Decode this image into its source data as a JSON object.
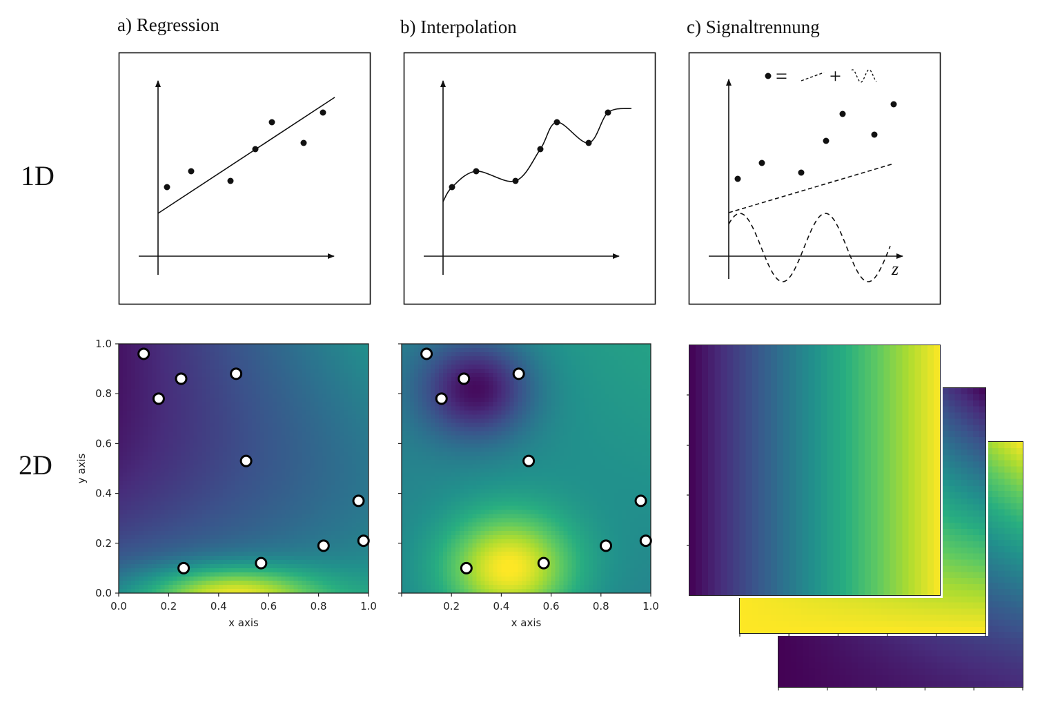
{
  "row_labels": {
    "row1": "1D",
    "row2": "2D"
  },
  "panel_titles": {
    "a": "a) Regression",
    "b": "b) Interpolation",
    "c": "c) Signaltrennung"
  },
  "signal_panel": {
    "axis_label": "z",
    "legend_equals": "=",
    "legend_plus": "+"
  },
  "colormap": "viridis",
  "chart_data": [
    {
      "type": "heatmap",
      "panel": "a) Regression 2D",
      "xlabel": "x axis",
      "ylabel": "y axis",
      "xlim": [
        0.0,
        1.0
      ],
      "ylim": [
        0.0,
        1.0
      ],
      "xticks": [
        "0.0",
        "0.2",
        "0.4",
        "0.6",
        "0.8",
        "1.0"
      ],
      "yticks": [
        "0.0",
        "0.2",
        "0.4",
        "0.6",
        "0.8",
        "1.0"
      ],
      "points": {
        "x": [
          0.1,
          0.16,
          0.25,
          0.47,
          0.51,
          0.96,
          0.98,
          0.82,
          0.57,
          0.26
        ],
        "y": [
          0.96,
          0.78,
          0.86,
          0.88,
          0.53,
          0.37,
          0.21,
          0.19,
          0.12,
          0.1
        ]
      }
    },
    {
      "type": "heatmap",
      "panel": "b) Interpolation 2D",
      "xlabel": "x axis",
      "ylabel": "",
      "xlim": [
        0.0,
        1.0
      ],
      "ylim": [
        0.0,
        1.0
      ],
      "xticks": [
        "",
        "0.2",
        "0.4",
        "0.6",
        "0.8",
        "1.0"
      ],
      "yticks": [
        "",
        "",
        "",
        "",
        "",
        ""
      ],
      "points": {
        "x": [
          0.1,
          0.16,
          0.25,
          0.47,
          0.51,
          0.96,
          0.98,
          0.82,
          0.57,
          0.26
        ],
        "y": [
          0.96,
          0.78,
          0.86,
          0.88,
          0.53,
          0.37,
          0.21,
          0.19,
          0.12,
          0.1
        ]
      }
    },
    {
      "type": "heatmap",
      "panel": "c) Signaltrennung 2D (stacked layers)",
      "layers": [
        "horizontal gradient",
        "diagonal gradient (yellow bottom-left)",
        "diagonal gradient (yellow top-right)"
      ]
    }
  ]
}
